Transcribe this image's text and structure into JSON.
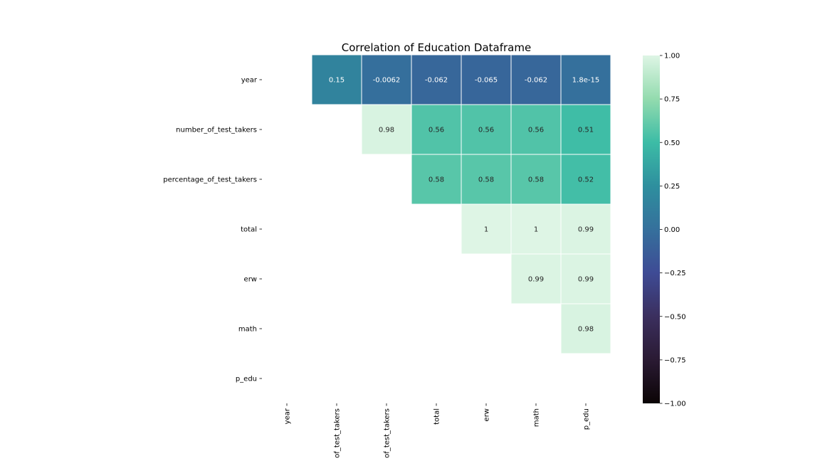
{
  "chart_data": {
    "type": "heatmap",
    "title": "Correlation of Education Dataframe",
    "rows": [
      "year",
      "number_of_test_takers",
      "percentage_of_test_takers",
      "total",
      "erw",
      "math",
      "p_edu"
    ],
    "columns": [
      "year",
      "number_of_test_takers",
      "percentage_of_test_takers",
      "total",
      "erw",
      "math",
      "p_edu"
    ],
    "column_tick_labels": [
      "year",
      "of_test_takers",
      "of_test_takers",
      "total",
      "erw",
      "math",
      "p_edu"
    ],
    "mask": "lower-triangle-and-diagonal",
    "cells": [
      {
        "row": 0,
        "col": 1,
        "value": 0.15,
        "label": "0.15"
      },
      {
        "row": 0,
        "col": 2,
        "value": -0.0062,
        "label": "-0.0062"
      },
      {
        "row": 0,
        "col": 3,
        "value": -0.062,
        "label": "-0.062"
      },
      {
        "row": 0,
        "col": 4,
        "value": -0.065,
        "label": "-0.065"
      },
      {
        "row": 0,
        "col": 5,
        "value": -0.062,
        "label": "-0.062"
      },
      {
        "row": 0,
        "col": 6,
        "value": 1.8e-15,
        "label": "1.8e-15"
      },
      {
        "row": 1,
        "col": 2,
        "value": 0.98,
        "label": "0.98"
      },
      {
        "row": 1,
        "col": 3,
        "value": 0.56,
        "label": "0.56"
      },
      {
        "row": 1,
        "col": 4,
        "value": 0.56,
        "label": "0.56"
      },
      {
        "row": 1,
        "col": 5,
        "value": 0.56,
        "label": "0.56"
      },
      {
        "row": 1,
        "col": 6,
        "value": 0.51,
        "label": "0.51"
      },
      {
        "row": 2,
        "col": 3,
        "value": 0.58,
        "label": "0.58"
      },
      {
        "row": 2,
        "col": 4,
        "value": 0.58,
        "label": "0.58"
      },
      {
        "row": 2,
        "col": 5,
        "value": 0.58,
        "label": "0.58"
      },
      {
        "row": 2,
        "col": 6,
        "value": 0.52,
        "label": "0.52"
      },
      {
        "row": 3,
        "col": 4,
        "value": 1.0,
        "label": "1"
      },
      {
        "row": 3,
        "col": 5,
        "value": 1.0,
        "label": "1"
      },
      {
        "row": 3,
        "col": 6,
        "value": 0.99,
        "label": "0.99"
      },
      {
        "row": 4,
        "col": 5,
        "value": 0.99,
        "label": "0.99"
      },
      {
        "row": 4,
        "col": 6,
        "value": 0.99,
        "label": "0.99"
      },
      {
        "row": 5,
        "col": 6,
        "value": 0.98,
        "label": "0.98"
      }
    ],
    "vmin": -1.0,
    "vmax": 1.0,
    "colormap": "mako",
    "colorbar_ticks": [
      1.0,
      0.75,
      0.5,
      0.25,
      0.0,
      -0.25,
      -0.5,
      -0.75,
      -1.0
    ],
    "colorbar_tick_labels": [
      "1.00",
      "0.75",
      "0.50",
      "0.25",
      "0.00",
      "−0.25",
      "−0.50",
      "−0.75",
      "−1.00"
    ],
    "colorbar_stops": [
      {
        "value": -1.0,
        "color": "#0b0405"
      },
      {
        "value": -0.75,
        "color": "#2a1a33"
      },
      {
        "value": -0.5,
        "color": "#3b2f5e"
      },
      {
        "value": -0.25,
        "color": "#3e4b95"
      },
      {
        "value": 0.0,
        "color": "#35709c"
      },
      {
        "value": 0.25,
        "color": "#2e8f9e"
      },
      {
        "value": 0.5,
        "color": "#3cbca6"
      },
      {
        "value": 0.75,
        "color": "#93dbae"
      },
      {
        "value": 1.0,
        "color": "#def5e5"
      }
    ],
    "annotate": true
  }
}
